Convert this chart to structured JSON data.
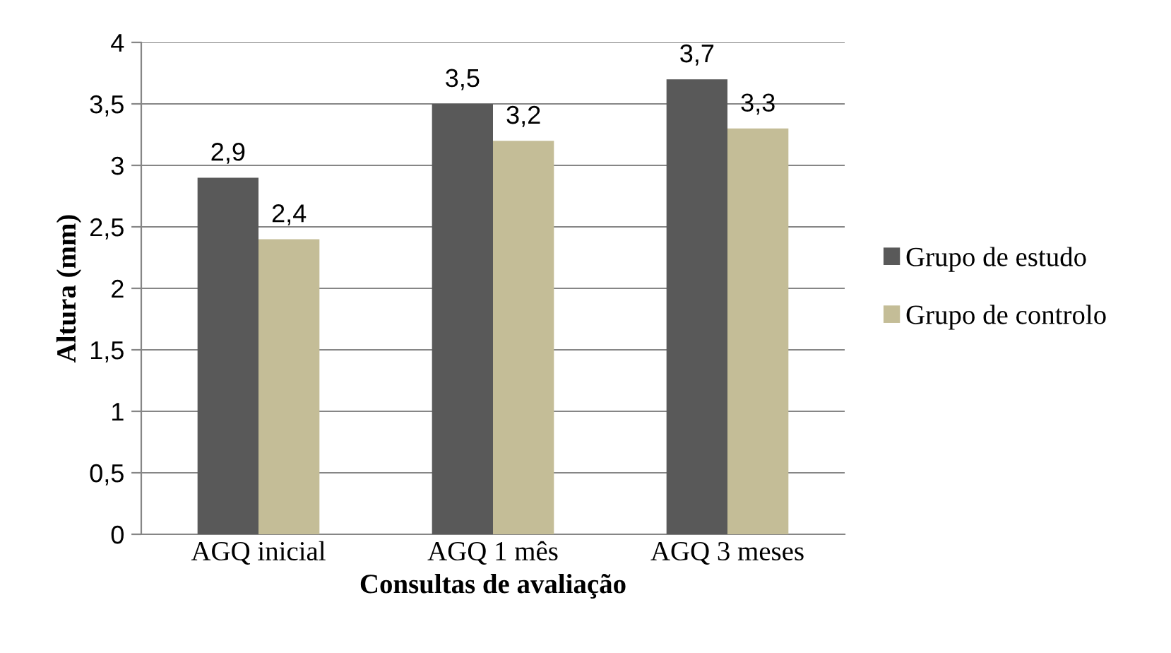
{
  "chart_data": {
    "type": "bar",
    "xlabel": "Consultas de avaliação",
    "ylabel": "Altura (mm)",
    "categories": [
      "AGQ inicial",
      "AGQ 1 mês",
      "AGQ 3 meses"
    ],
    "series": [
      {
        "name": "Grupo de estudo",
        "color": "#595959",
        "values": [
          2.9,
          3.5,
          3.7
        ],
        "value_labels": [
          "2,9",
          "3,5",
          "3,7"
        ]
      },
      {
        "name": "Grupo de controlo",
        "color": "#c4bd97",
        "values": [
          2.4,
          3.2,
          3.3
        ],
        "value_labels": [
          "2,4",
          "3,2",
          "3,3"
        ]
      }
    ],
    "ylim": [
      0,
      4
    ],
    "yticks": [
      0,
      {
        "value": 0.5,
        "label": "0,5"
      },
      1,
      {
        "value": 1.5,
        "label": "1,5"
      },
      2,
      {
        "value": 2.5,
        "label": "2,5"
      },
      3,
      {
        "value": 3.5,
        "label": "3,5"
      },
      4
    ],
    "grid": "y",
    "legend": "right"
  }
}
